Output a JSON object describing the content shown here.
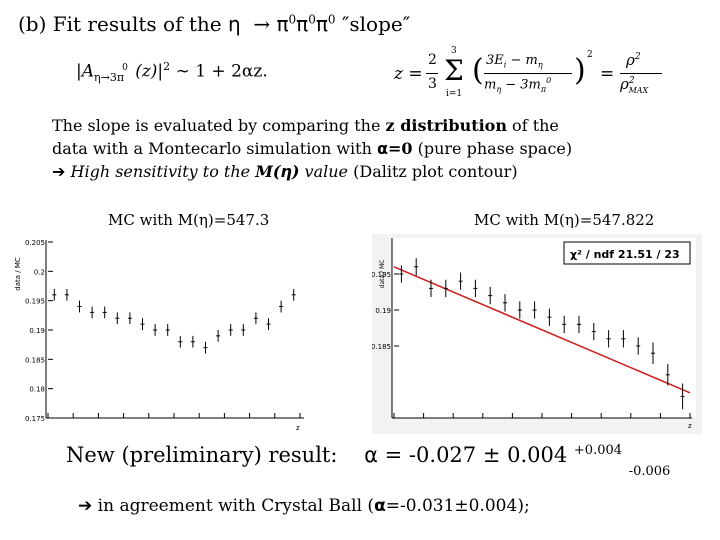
{
  "title": {
    "text": "(b) Fit results of the",
    "eta": "η",
    "arrow": "→",
    "pi": "π",
    "zero": "0",
    "slope": "″slope″"
  },
  "formula_left": {
    "lhs": "|A",
    "sub": "η→3π",
    "sup_0": "0",
    "z": "(z)|",
    "sq": "2",
    "rhs": "∼ 1 + 2αz."
  },
  "formula_right": {
    "text_z": "z =",
    "frac_num": "2",
    "frac_den": "3",
    "sum_top": "3",
    "sum_bot": "i=1",
    "sigma": "Σ",
    "inner_num": "3E",
    "inner_num_sub": "i",
    "inner_num_rest": " − m",
    "inner_num_sub2": "η",
    "inner_den": "m",
    "inner_den_sub": "η",
    "inner_den_rest": " − 3m",
    "inner_den_sub2": "π",
    "inner_den_sup": "0",
    "outer_sq": "2",
    "eq": "=",
    "rho": "ρ",
    "rho_sq": "2",
    "rho_max": "ρ",
    "rho_max_sq": "2",
    "rho_max_sub": "MAX"
  },
  "paragraph": {
    "line1_a": "The slope is evaluated by comparing the ",
    "line1_b": "z distribution",
    "line1_c": " of the",
    "line2_a": "data with a Montecarlo simulation with ",
    "line2_alpha": "α",
    "line2_b": "=0",
    "line2_c": " (pure phase space)",
    "line3_arrow": "➔",
    "line3_a": "High sensitivity to the ",
    "line3_b": "M(",
    "line3_eta": "η",
    "line3_c": ")",
    "line3_d": " value",
    "line3_e": " (Dalitz plot contour)"
  },
  "labels": {
    "mc_left": "MC with M(η)=547.3",
    "mc_right": "MC with M(η)=547.822"
  },
  "result": {
    "label": "New (preliminary) result:",
    "alpha": "α",
    "value": " = -0.027 ± 0.004",
    "sup": "+0.004",
    "sub": "-0.006"
  },
  "agreement": {
    "arrow": "➔",
    "text_a": " in agreement with Crystal Ball (",
    "alpha": "α",
    "value": "=-0.031±0.004",
    "text_b": ");"
  },
  "chart_data": [
    {
      "type": "scatter",
      "title": "",
      "xlabel": "z",
      "ylabel": "data / MC",
      "ylim": [
        0.175,
        0.205
      ],
      "yticks": [
        "0.175",
        "0.18",
        "0.185",
        "0.19",
        "0.195",
        "0.2",
        "0.205"
      ],
      "xticks": [
        "0",
        "0.1",
        "0.2",
        "0.3",
        "0.4",
        "0.5",
        "0.6",
        "0.7",
        "0.8",
        "0.9",
        "1"
      ],
      "xlim": [
        0,
        1
      ],
      "x": [
        0.025,
        0.075,
        0.125,
        0.175,
        0.225,
        0.275,
        0.325,
        0.375,
        0.425,
        0.475,
        0.525,
        0.575,
        0.625,
        0.675,
        0.725,
        0.775,
        0.825,
        0.875,
        0.925,
        0.975
      ],
      "y": [
        0.196,
        0.196,
        0.194,
        0.193,
        0.193,
        0.192,
        0.192,
        0.191,
        0.19,
        0.19,
        0.188,
        0.188,
        0.187,
        0.189,
        0.19,
        0.19,
        0.192,
        0.191,
        0.194,
        0.196
      ],
      "yerr": [
        0.001,
        0.001,
        0.001,
        0.001,
        0.001,
        0.001,
        0.001,
        0.001,
        0.001,
        0.001,
        0.001,
        0.001,
        0.001,
        0.001,
        0.001,
        0.001,
        0.001,
        0.001,
        0.001,
        0.001
      ]
    },
    {
      "type": "scatter",
      "title": "",
      "xlabel": "z",
      "ylabel": "data / MC",
      "legend": "χ² / ndf  21.51 / 23",
      "ylim": [
        0.175,
        0.2
      ],
      "yticks": [
        "0.185",
        "0.19",
        "0.195"
      ],
      "xticks": [
        "0",
        "0.1",
        "0.2",
        "0.3",
        "0.4",
        "0.5",
        "0.6",
        "0.7",
        "0.8",
        "0.9",
        "1"
      ],
      "xlim": [
        0,
        1
      ],
      "fit_line": {
        "x": [
          0,
          1
        ],
        "y": [
          0.196,
          0.1785
        ]
      },
      "x": [
        0.025,
        0.075,
        0.125,
        0.175,
        0.225,
        0.275,
        0.325,
        0.375,
        0.425,
        0.475,
        0.525,
        0.575,
        0.625,
        0.675,
        0.725,
        0.775,
        0.825,
        0.875,
        0.925,
        0.975
      ],
      "y": [
        0.195,
        0.196,
        0.193,
        0.193,
        0.194,
        0.193,
        0.192,
        0.191,
        0.19,
        0.19,
        0.189,
        0.188,
        0.188,
        0.187,
        0.186,
        0.186,
        0.185,
        0.184,
        0.181,
        0.178
      ],
      "yerr": [
        0.0012,
        0.0012,
        0.0012,
        0.0012,
        0.0012,
        0.0012,
        0.0012,
        0.0012,
        0.0012,
        0.0012,
        0.0012,
        0.0012,
        0.0012,
        0.0012,
        0.0012,
        0.0012,
        0.0012,
        0.0015,
        0.0015,
        0.0018
      ]
    }
  ],
  "colors": {
    "fit_line": "#cc2222",
    "text": "#000000"
  }
}
